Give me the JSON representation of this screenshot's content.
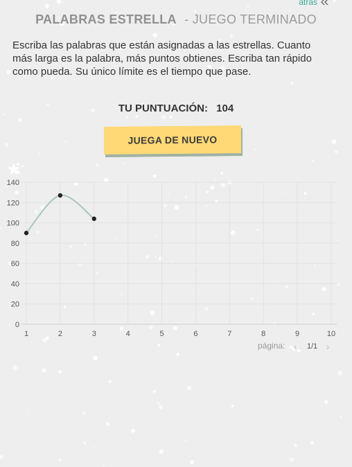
{
  "header": {
    "back_label": "atrás",
    "title": "PALABRAS ESTRELLA",
    "subtitle": "- JUEGO TERMINADO"
  },
  "description": "Escriba las palabras que están asignadas a las estrellas. Cuanto más larga es la palabra, más puntos obtienes. Escriba tan rápido como pueda. Su único límite es el tiempo que pase.",
  "score": {
    "label": "TU PUNTUACIÓN:",
    "value": "104"
  },
  "play_again_label": "JUEGA DE NUEVO",
  "icons": {
    "back": "double-chevron-left-icon",
    "chart": "star-icon",
    "prev": "chevron-left-icon",
    "next": "chevron-right-icon"
  },
  "colors": {
    "accent": "#3aa89a",
    "button": "#ffd976",
    "line": "#a9c6bd",
    "point": "#222222"
  },
  "chart_data": {
    "type": "line",
    "x": [
      1,
      2,
      3
    ],
    "y": [
      90,
      127,
      104
    ],
    "xlim": [
      1,
      10
    ],
    "ylim": [
      0,
      140
    ],
    "x_ticks": [
      1,
      2,
      3,
      4,
      5,
      6,
      7,
      8,
      9,
      10
    ],
    "y_ticks": [
      0,
      20,
      40,
      60,
      80,
      100,
      120,
      140
    ],
    "grid": true
  },
  "pagination": {
    "label": "página:",
    "page": "1/1"
  }
}
